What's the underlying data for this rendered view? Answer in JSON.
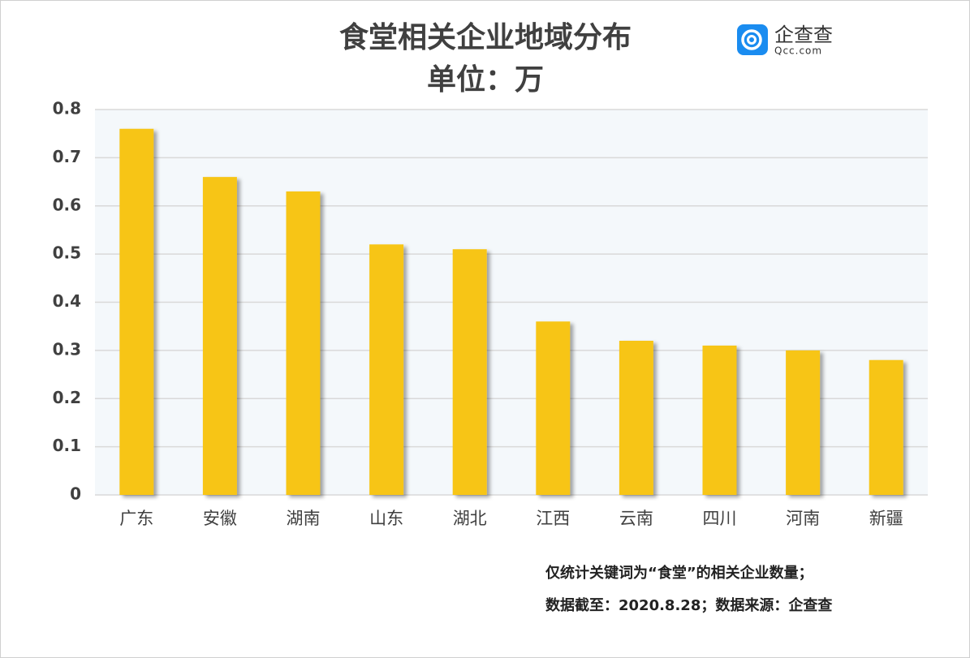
{
  "chart_data": {
    "type": "bar",
    "title": "食堂相关企业地域分布",
    "subtitle": "单位：万",
    "categories": [
      "广东",
      "安徽",
      "湖南",
      "山东",
      "湖北",
      "江西",
      "云南",
      "四川",
      "河南",
      "新疆"
    ],
    "values": [
      0.76,
      0.66,
      0.63,
      0.52,
      0.51,
      0.36,
      0.32,
      0.31,
      0.3,
      0.28
    ],
    "color": "#f7c518",
    "ylim": [
      0,
      0.8
    ],
    "yticks": [
      0,
      0.1,
      0.2,
      0.3,
      0.4,
      0.5,
      0.6,
      0.7,
      0.8
    ],
    "grid": true,
    "annotations": [
      "仅统计关键词为“食堂”的相关企业数量；",
      "数据截至：2020.8.28；数据来源：企查查"
    ],
    "logo": {
      "name": "企查查",
      "url": "Qcc.com"
    }
  }
}
